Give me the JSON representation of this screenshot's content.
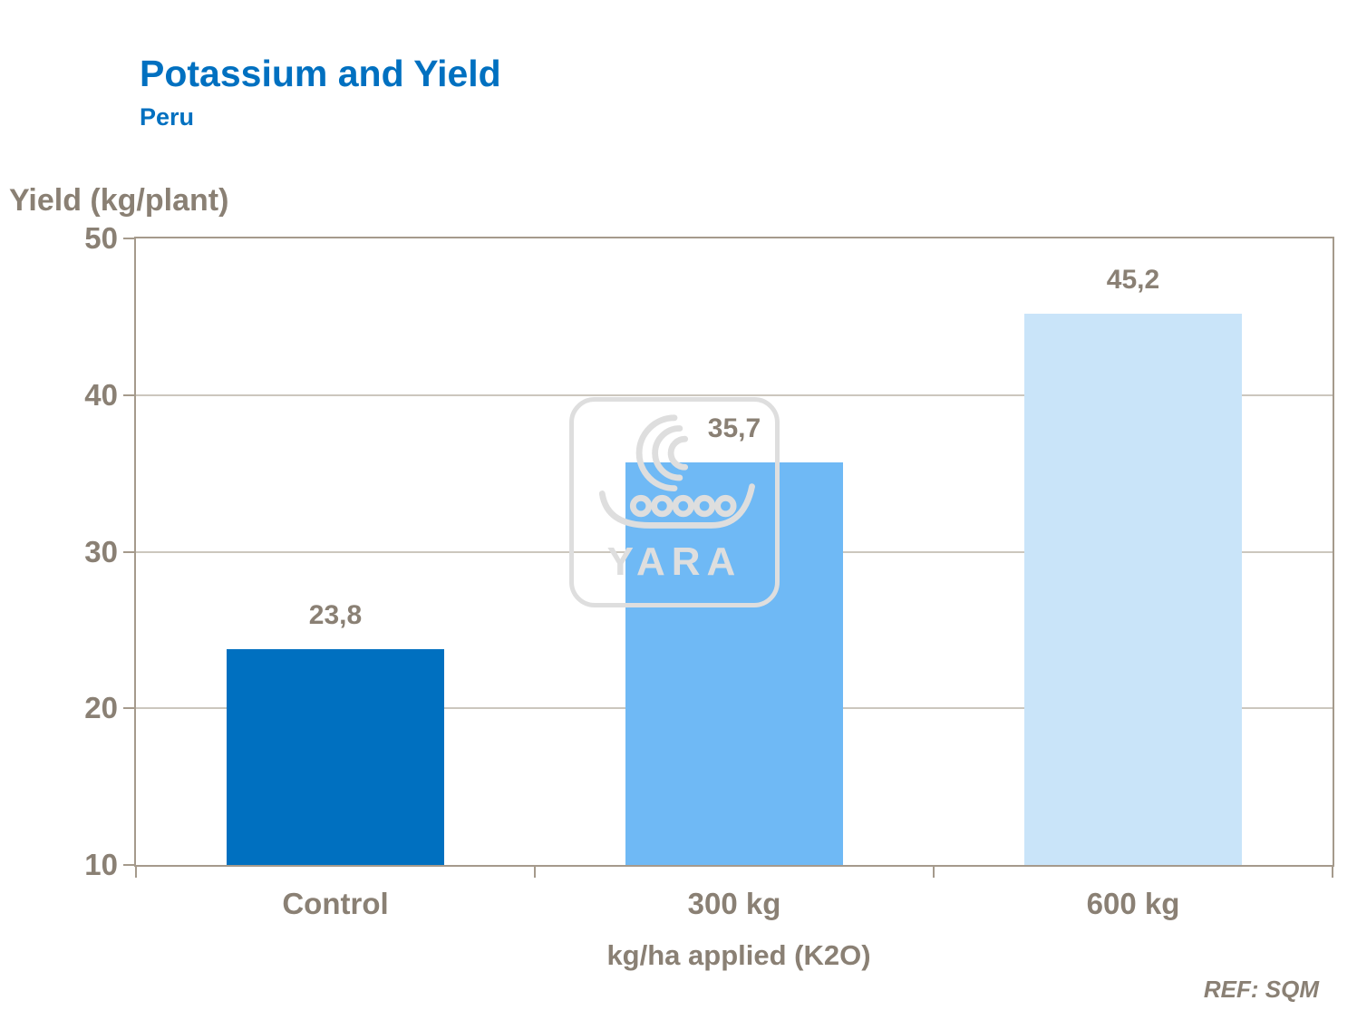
{
  "slide": {
    "title": "Potassium and Yield",
    "subtitle": "Peru",
    "reference": "REF: SQM"
  },
  "watermark": {
    "label": "YARA",
    "icon": "yara-viking-ship-icon"
  },
  "chart_data": {
    "type": "bar",
    "title": "Potassium and Yield",
    "subtitle": "Peru",
    "categories": [
      "Control",
      "300 kg",
      "600 kg"
    ],
    "values": [
      23.8,
      35.7,
      45.2
    ],
    "value_labels": [
      "23,8",
      "35,7",
      "45,2"
    ],
    "ylabel": "Yield (kg/plant)",
    "xlabel": "kg/ha applied (K2O)",
    "ylim": [
      10,
      50
    ],
    "yticks": [
      50,
      40,
      30,
      20,
      10
    ],
    "grid": true,
    "legend": false,
    "bar_colors": [
      "#0070C0",
      "#6FB9F5",
      "#C9E4F9"
    ],
    "axis_text_color": "#8A8074",
    "reference": "REF: SQM"
  }
}
